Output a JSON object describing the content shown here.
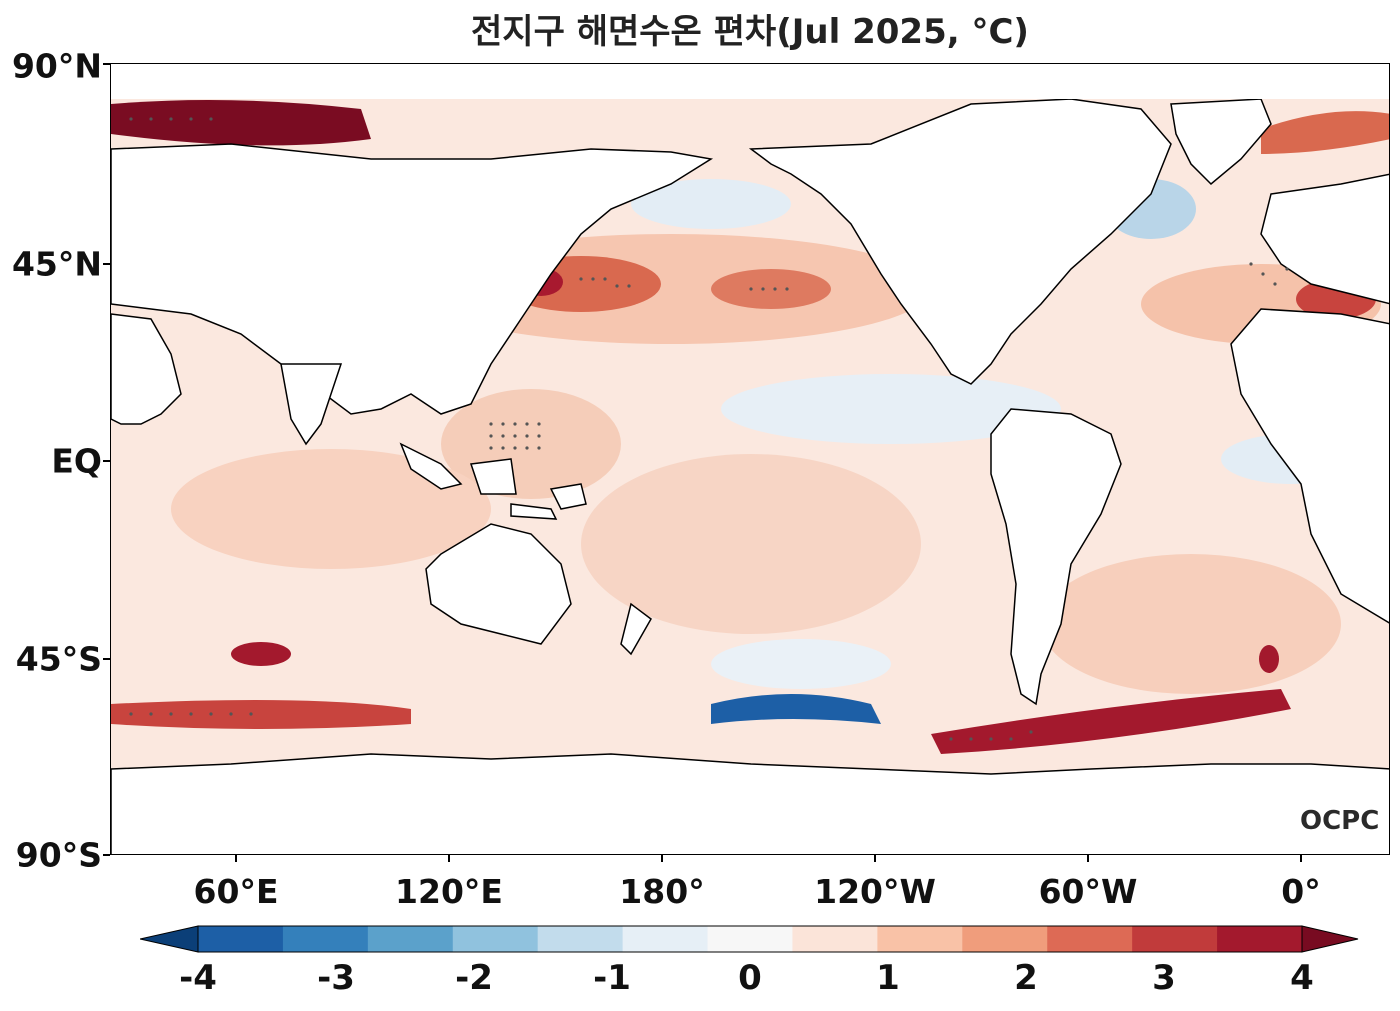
{
  "title": "전지구 해면수온 편차(Jul 2025, °C)",
  "lat_labels": [
    "90°N",
    "45°N",
    "EQ",
    "45°S",
    "90°S"
  ],
  "lon_labels": [
    "60°E",
    "120°E",
    "180°",
    "120°W",
    "60°W",
    "0°"
  ],
  "watermark": "OCPC",
  "colorbar": {
    "labels": [
      "-4",
      "-3",
      "-2",
      "-1",
      "0",
      "1",
      "2",
      "3",
      "4"
    ],
    "colors": [
      "#0b3f78",
      "#1d5fa6",
      "#3480bb",
      "#5ba1cb",
      "#90c2de",
      "#c2dcec",
      "#e6eff6",
      "#f7f7f7",
      "#fbe4d9",
      "#f9c2a7",
      "#f09d7c",
      "#dd6a55",
      "#c13b3b",
      "#a3192d",
      "#780b21"
    ],
    "extend": "both"
  }
}
